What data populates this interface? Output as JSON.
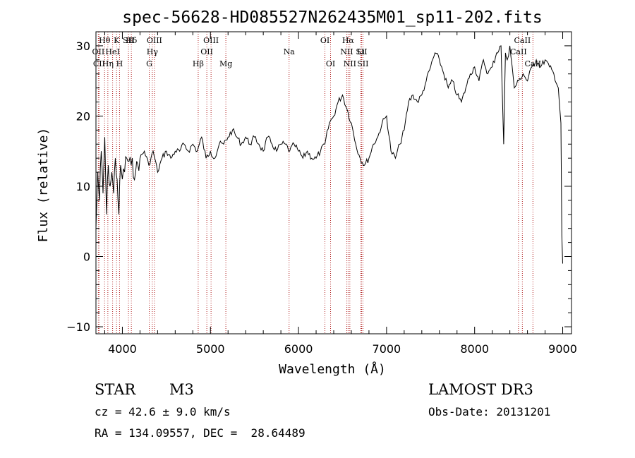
{
  "chart_data": {
    "type": "line",
    "title": "spec-56628-HD085527N262435M01_sp11-202.fits",
    "xlabel": "Wavelength (Å)",
    "ylabel": "Flux (relative)",
    "xlim": [
      3700,
      9100
    ],
    "ylim": [
      -11,
      32
    ],
    "xticks": [
      4000,
      5000,
      6000,
      7000,
      8000,
      9000
    ],
    "xtick_labels": [
      "4000",
      "5000",
      "6000",
      "7000",
      "8000",
      "9000"
    ],
    "yticks": [
      -10,
      0,
      10,
      20,
      30
    ],
    "ytick_labels": [
      "−10",
      "0",
      "10",
      "20",
      "30"
    ],
    "grid": false,
    "series": [
      {
        "name": "flux",
        "x": [
          3700,
          3720,
          3740,
          3760,
          3780,
          3800,
          3820,
          3840,
          3860,
          3880,
          3900,
          3920,
          3940,
          3960,
          3980,
          4000,
          4050,
          4100,
          4150,
          4200,
          4250,
          4300,
          4350,
          4400,
          4450,
          4500,
          4550,
          4600,
          4650,
          4700,
          4750,
          4800,
          4850,
          4900,
          4950,
          5000,
          5050,
          5100,
          5150,
          5200,
          5250,
          5300,
          5350,
          5400,
          5450,
          5500,
          5550,
          5600,
          5650,
          5700,
          5750,
          5800,
          5850,
          5900,
          5950,
          6000,
          6050,
          6100,
          6150,
          6200,
          6250,
          6300,
          6350,
          6400,
          6450,
          6500,
          6550,
          6600,
          6650,
          6700,
          6750,
          6800,
          6850,
          6900,
          6950,
          7000,
          7050,
          7100,
          7150,
          7200,
          7250,
          7300,
          7350,
          7400,
          7450,
          7500,
          7550,
          7600,
          7650,
          7700,
          7750,
          7800,
          7850,
          7900,
          7950,
          8000,
          8050,
          8100,
          8150,
          8200,
          8250,
          8300,
          8330,
          8350,
          8370,
          8400,
          8450,
          8500,
          8550,
          8600,
          8650,
          8700,
          8750,
          8800,
          8850,
          8900,
          8950,
          8980,
          8990,
          9000
        ],
        "y": [
          4,
          12,
          8,
          15,
          9,
          17,
          6,
          13,
          10,
          12,
          9,
          14,
          11,
          6,
          13,
          11,
          14,
          13,
          12,
          14,
          15,
          13,
          15,
          12,
          14,
          15,
          14,
          15,
          15,
          16,
          15,
          16,
          15,
          17,
          14,
          15,
          14,
          16,
          16,
          17,
          18,
          17,
          16,
          17,
          16,
          17,
          16,
          15,
          17,
          16,
          15,
          16,
          16,
          15,
          16,
          15,
          14,
          15,
          14,
          14,
          15,
          16,
          19,
          20,
          22,
          23,
          21,
          19,
          16,
          14,
          13,
          14,
          16,
          17,
          19,
          20,
          15,
          14,
          16,
          18,
          22,
          23,
          22,
          23,
          25,
          27,
          29,
          28,
          26,
          24,
          25,
          23,
          22,
          24,
          26,
          27,
          25,
          28,
          26,
          27,
          29,
          30,
          16,
          29,
          28,
          30,
          24,
          25,
          26,
          25,
          27,
          28,
          27,
          28,
          27,
          26,
          24,
          19,
          3,
          -1
        ]
      }
    ],
    "line_markers": [
      {
        "label": "Hθ",
        "wavelength": 3798
      },
      {
        "label": "OII",
        "wavelength": 3727
      },
      {
        "label": "CII",
        "wavelength": 3735
      },
      {
        "label": "Hη",
        "wavelength": 3835
      },
      {
        "label": "K",
        "wavelength": 3934
      },
      {
        "label": "HeI",
        "wavelength": 3889
      },
      {
        "label": "H",
        "wavelength": 3968
      },
      {
        "label": "SII",
        "wavelength": 4069
      },
      {
        "label": "Hδ",
        "wavelength": 4102
      },
      {
        "label": "OIII",
        "wavelength": 4364
      },
      {
        "label": "Hγ",
        "wavelength": 4340
      },
      {
        "label": "G",
        "wavelength": 4305
      },
      {
        "label": "Hβ",
        "wavelength": 4861
      },
      {
        "label": "OIII",
        "wavelength": 5007
      },
      {
        "label": "OII",
        "wavelength": 4959
      },
      {
        "label": "Mg",
        "wavelength": 5175
      },
      {
        "label": "Na",
        "wavelength": 5893
      },
      {
        "label": "OI",
        "wavelength": 6300
      },
      {
        "label": "OI",
        "wavelength": 6364
      },
      {
        "label": "Hα",
        "wavelength": 6563
      },
      {
        "label": "SII",
        "wavelength": 6716
      },
      {
        "label": "NII",
        "wavelength": 6548
      },
      {
        "label": "Li",
        "wavelength": 6708
      },
      {
        "label": "NII",
        "wavelength": 6583
      },
      {
        "label": "SII",
        "wavelength": 6731
      },
      {
        "label": "CaII",
        "wavelength": 8542
      },
      {
        "label": "CaII",
        "wavelength": 8498
      },
      {
        "label": "CaII",
        "wavelength": 8662
      }
    ],
    "line_label_rows": {
      "row1": [
        "Hθ",
        "K",
        "Hδ",
        "OIII",
        "OIII",
        "OI",
        "Hα",
        "SII",
        "CaII"
      ],
      "row2": [
        "OII",
        "HeI",
        "SII",
        "Hγ",
        "OII",
        "Na",
        "NII",
        "Li",
        "CaII"
      ],
      "row3": [
        "CII",
        "Hη",
        "H",
        "G",
        "Hβ",
        "Mg",
        "OI",
        "NII",
        "SII",
        "CaII"
      ]
    },
    "colors": {
      "spectrum": "#000000",
      "line_markers": "#b22222",
      "background": "#ffffff"
    }
  },
  "info": {
    "object_class": "STAR",
    "subclass": "M3",
    "survey": "LAMOST DR3",
    "cz": "cz = 42.6 ± 9.0 km/s",
    "obs_date": "Obs-Date: 20131201",
    "coords": "RA = 134.09557, DEC =  28.64489"
  }
}
